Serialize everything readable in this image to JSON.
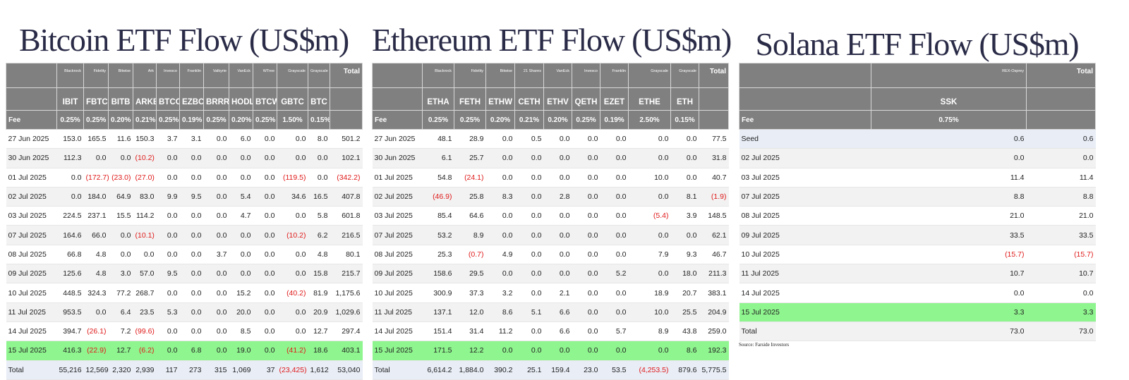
{
  "bitcoin": {
    "title": "Bitcoin ETF Flow (US$m)",
    "issuers": [
      "Blackrock",
      "Fidelity",
      "Bitwise",
      "Ark",
      "Invesco",
      "Franklin",
      "Valkyrie",
      "VanEck",
      "WTree",
      "Grayscale",
      "Grayscale"
    ],
    "total_header": "Total",
    "tickers": [
      "IBIT",
      "FBTC",
      "BITB",
      "ARKB",
      "BTCO",
      "EZBC",
      "BRRR",
      "HODL",
      "BTCW",
      "GBTC",
      "BTC"
    ],
    "fee_label": "Fee",
    "fees": [
      "0.25%",
      "0.25%",
      "0.20%",
      "0.21%",
      "0.25%",
      "0.19%",
      "0.25%",
      "0.20%",
      "0.25%",
      "1.50%",
      "0.15%"
    ],
    "rows": [
      [
        "27 Jun 2025",
        "153.0",
        "165.5",
        "11.6",
        "150.3",
        "3.7",
        "3.1",
        "0.0",
        "6.0",
        "0.0",
        "0.0",
        "8.0",
        "501.2"
      ],
      [
        "30 Jun 2025",
        "112.3",
        "0.0",
        "0.0",
        "(10.2)",
        "0.0",
        "0.0",
        "0.0",
        "0.0",
        "0.0",
        "0.0",
        "0.0",
        "102.1"
      ],
      [
        "01 Jul 2025",
        "0.0",
        "(172.7)",
        "(23.0)",
        "(27.0)",
        "0.0",
        "0.0",
        "0.0",
        "0.0",
        "0.0",
        "(119.5)",
        "0.0",
        "(342.2)"
      ],
      [
        "02 Jul 2025",
        "0.0",
        "184.0",
        "64.9",
        "83.0",
        "9.9",
        "9.5",
        "0.0",
        "5.4",
        "0.0",
        "34.6",
        "16.5",
        "407.8"
      ],
      [
        "03 Jul 2025",
        "224.5",
        "237.1",
        "15.5",
        "114.2",
        "0.0",
        "0.0",
        "0.0",
        "4.7",
        "0.0",
        "0.0",
        "5.8",
        "601.8"
      ],
      [
        "07 Jul 2025",
        "164.6",
        "66.0",
        "0.0",
        "(10.1)",
        "0.0",
        "0.0",
        "0.0",
        "0.0",
        "0.0",
        "(10.2)",
        "6.2",
        "216.5"
      ],
      [
        "08 Jul 2025",
        "66.8",
        "4.8",
        "0.0",
        "0.0",
        "0.0",
        "0.0",
        "3.7",
        "0.0",
        "0.0",
        "0.0",
        "4.8",
        "80.1"
      ],
      [
        "09 Jul 2025",
        "125.6",
        "4.8",
        "3.0",
        "57.0",
        "9.5",
        "0.0",
        "0.0",
        "0.0",
        "0.0",
        "0.0",
        "15.8",
        "215.7"
      ],
      [
        "10 Jul 2025",
        "448.5",
        "324.3",
        "77.2",
        "268.7",
        "0.0",
        "0.0",
        "0.0",
        "15.2",
        "0.0",
        "(40.2)",
        "81.9",
        "1,175.6"
      ],
      [
        "11 Jul 2025",
        "953.5",
        "0.0",
        "6.4",
        "23.5",
        "5.3",
        "0.0",
        "0.0",
        "20.0",
        "0.0",
        "0.0",
        "20.9",
        "1,029.6"
      ],
      [
        "14 Jul 2025",
        "394.7",
        "(26.1)",
        "7.2",
        "(99.6)",
        "0.0",
        "0.0",
        "0.0",
        "8.5",
        "0.0",
        "0.0",
        "12.7",
        "297.4"
      ],
      [
        "15 Jul 2025",
        "416.3",
        "(22.9)",
        "12.7",
        "(6.2)",
        "0.0",
        "6.8",
        "0.0",
        "19.0",
        "0.0",
        "(41.2)",
        "18.6",
        "403.1"
      ]
    ],
    "total": [
      "Total",
      "55,216",
      "12,569",
      "2,320",
      "2,939",
      "117",
      "273",
      "315",
      "1,069",
      "37",
      "(23,425)",
      "1,612",
      "53,040"
    ]
  },
  "ethereum": {
    "title": "Ethereum ETF Flow (US$m)",
    "issuers": [
      "Blackrock",
      "Fidelity",
      "Bitwise",
      "21 Shares",
      "VanEck",
      "Invesco",
      "Franklin",
      "Grayscale",
      "Grayscale"
    ],
    "total_header": "Total",
    "tickers": [
      "ETHA",
      "FETH",
      "ETHW",
      "CETH",
      "ETHV",
      "QETH",
      "EZET",
      "ETHE",
      "ETH"
    ],
    "fee_label": "Fee",
    "fees": [
      "0.25%",
      "0.25%",
      "0.20%",
      "0.21%",
      "0.20%",
      "0.25%",
      "0.19%",
      "2.50%",
      "0.15%"
    ],
    "rows": [
      [
        "27 Jun 2025",
        "48.1",
        "28.9",
        "0.0",
        "0.5",
        "0.0",
        "0.0",
        "0.0",
        "0.0",
        "0.0",
        "77.5"
      ],
      [
        "30 Jun 2025",
        "6.1",
        "25.7",
        "0.0",
        "0.0",
        "0.0",
        "0.0",
        "0.0",
        "0.0",
        "0.0",
        "31.8"
      ],
      [
        "01 Jul 2025",
        "54.8",
        "(24.1)",
        "0.0",
        "0.0",
        "0.0",
        "0.0",
        "0.0",
        "10.0",
        "0.0",
        "40.7"
      ],
      [
        "02 Jul 2025",
        "(46.9)",
        "25.8",
        "8.3",
        "0.0",
        "2.8",
        "0.0",
        "0.0",
        "0.0",
        "8.1",
        "(1.9)"
      ],
      [
        "03 Jul 2025",
        "85.4",
        "64.6",
        "0.0",
        "0.0",
        "0.0",
        "0.0",
        "0.0",
        "(5.4)",
        "3.9",
        "148.5"
      ],
      [
        "07 Jul 2025",
        "53.2",
        "8.9",
        "0.0",
        "0.0",
        "0.0",
        "0.0",
        "0.0",
        "0.0",
        "0.0",
        "62.1"
      ],
      [
        "08 Jul 2025",
        "25.3",
        "(0.7)",
        "4.9",
        "0.0",
        "0.0",
        "0.0",
        "0.0",
        "7.9",
        "9.3",
        "46.7"
      ],
      [
        "09 Jul 2025",
        "158.6",
        "29.5",
        "0.0",
        "0.0",
        "0.0",
        "0.0",
        "5.2",
        "0.0",
        "18.0",
        "211.3"
      ],
      [
        "10 Jul 2025",
        "300.9",
        "37.3",
        "3.2",
        "0.0",
        "2.1",
        "0.0",
        "0.0",
        "18.9",
        "20.7",
        "383.1"
      ],
      [
        "11 Jul 2025",
        "137.1",
        "12.0",
        "8.6",
        "5.1",
        "6.6",
        "0.0",
        "0.0",
        "10.0",
        "25.5",
        "204.9"
      ],
      [
        "14 Jul 2025",
        "151.4",
        "31.4",
        "11.2",
        "0.0",
        "6.6",
        "0.0",
        "5.7",
        "8.9",
        "43.8",
        "259.0"
      ],
      [
        "15 Jul 2025",
        "171.5",
        "12.2",
        "0.0",
        "0.0",
        "0.0",
        "0.0",
        "0.0",
        "0.0",
        "8.6",
        "192.3"
      ]
    ],
    "total": [
      "Total",
      "6,614.2",
      "1,884.0",
      "390.2",
      "25.1",
      "159.4",
      "23.0",
      "53.5",
      "(4,253.5)",
      "879.6",
      "5,775.5"
    ]
  },
  "solana": {
    "title": "Solana ETF Flow (US$m)",
    "issuers": [
      "REX-Osprey"
    ],
    "total_header": "Total",
    "tickers": [
      "SSK"
    ],
    "fee_label": "Fee",
    "fees": [
      "0.75%"
    ],
    "rows": [
      [
        "Seed",
        "0.6",
        "0.6"
      ],
      [
        "02 Jul 2025",
        "0.0",
        "0.0"
      ],
      [
        "03 Jul 2025",
        "11.4",
        "11.4"
      ],
      [
        "07 Jul 2025",
        "8.8",
        "8.8"
      ],
      [
        "08 Jul 2025",
        "21.0",
        "21.0"
      ],
      [
        "09 Jul 2025",
        "33.5",
        "33.5"
      ],
      [
        "10 Jul 2025",
        "(15.7)",
        "(15.7)"
      ],
      [
        "11 Jul 2025",
        "10.7",
        "10.7"
      ],
      [
        "14 Jul 2025",
        "0.0",
        "0.0"
      ],
      [
        "15 Jul 2025",
        "3.3",
        "3.3"
      ]
    ],
    "total": [
      "Total",
      "73.0",
      "73.0"
    ]
  },
  "source": "Source: Farside Investors"
}
